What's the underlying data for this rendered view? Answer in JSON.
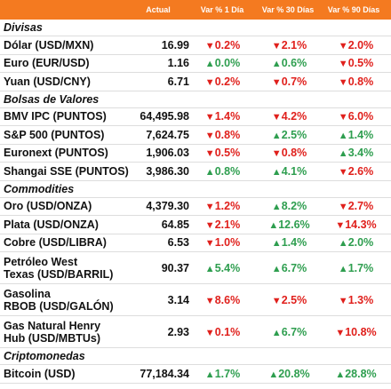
{
  "table": {
    "columns": [
      "Actual",
      "Var % 1 Día",
      "Var % 30 Días",
      "Var % 90 Días"
    ],
    "sections": [
      {
        "title": "Divisas",
        "rows": [
          {
            "name": "Dólar (USD/MXN)",
            "actual": "16.99",
            "changes": [
              {
                "dir": "▼",
                "value": "0.2%"
              },
              {
                "dir": "▼",
                "value": "2.1%"
              },
              {
                "dir": "▼",
                "value": "2.0%"
              }
            ]
          },
          {
            "name": "Euro (EUR/USD)",
            "actual": "1.16",
            "changes": [
              {
                "dir": "▲",
                "value": "0.0%"
              },
              {
                "dir": "▲",
                "value": "0.6%"
              },
              {
                "dir": "▼",
                "value": "0.5%"
              }
            ]
          },
          {
            "name": "Yuan (USD/CNY)",
            "actual": "6.71",
            "changes": [
              {
                "dir": "▼",
                "value": "0.2%"
              },
              {
                "dir": "▼",
                "value": "0.7%"
              },
              {
                "dir": "▼",
                "value": "0.8%"
              }
            ]
          }
        ]
      },
      {
        "title": "Bolsas de Valores",
        "rows": [
          {
            "name": "BMV IPC (PUNTOS)",
            "actual": "64,495.98",
            "changes": [
              {
                "dir": "▼",
                "value": "1.4%"
              },
              {
                "dir": "▼",
                "value": "4.2%"
              },
              {
                "dir": "▼",
                "value": "6.0%"
              }
            ]
          },
          {
            "name": "S&P 500 (PUNTOS)",
            "actual": "7,624.75",
            "changes": [
              {
                "dir": "▼",
                "value": "0.8%"
              },
              {
                "dir": "▲",
                "value": "2.5%"
              },
              {
                "dir": "▲",
                "value": "1.4%"
              }
            ]
          },
          {
            "name": "Euronext (PUNTOS)",
            "actual": "1,906.03",
            "changes": [
              {
                "dir": "▼",
                "value": "0.5%"
              },
              {
                "dir": "▼",
                "value": "0.8%"
              },
              {
                "dir": "▲",
                "value": "3.4%"
              }
            ]
          },
          {
            "name": "Shangai SSE (PUNTOS)",
            "actual": "3,986.30",
            "changes": [
              {
                "dir": "▲",
                "value": "0.8%"
              },
              {
                "dir": "▲",
                "value": "4.1%"
              },
              {
                "dir": "▼",
                "value": "2.6%"
              }
            ]
          }
        ]
      },
      {
        "title": "Commodities",
        "rows": [
          {
            "name": "Oro (USD/ONZA)",
            "actual": "4,379.30",
            "changes": [
              {
                "dir": "▼",
                "value": "1.2%"
              },
              {
                "dir": "▲",
                "value": "8.2%"
              },
              {
                "dir": "▼",
                "value": "2.7%"
              }
            ]
          },
          {
            "name": "Plata (USD/ONZA)",
            "actual": "64.85",
            "changes": [
              {
                "dir": "▼",
                "value": "2.1%"
              },
              {
                "dir": "▲",
                "value": "12.6%"
              },
              {
                "dir": "▼",
                "value": "14.3%"
              }
            ]
          },
          {
            "name": "Cobre (USD/LIBRA)",
            "actual": "6.53",
            "changes": [
              {
                "dir": "▼",
                "value": "1.0%"
              },
              {
                "dir": "▲",
                "value": "1.4%"
              },
              {
                "dir": "▲",
                "value": "2.0%"
              }
            ]
          },
          {
            "name": "Petróleo West\nTexas (USD/BARRIL)",
            "actual": "90.37",
            "changes": [
              {
                "dir": "▲",
                "value": "5.4%"
              },
              {
                "dir": "▲",
                "value": "6.7%"
              },
              {
                "dir": "▲",
                "value": "1.7%"
              }
            ]
          },
          {
            "name": "Gasolina\nRBOB (USD/GALÓN)",
            "actual": "3.14",
            "changes": [
              {
                "dir": "▼",
                "value": "8.6%"
              },
              {
                "dir": "▼",
                "value": "2.5%"
              },
              {
                "dir": "▼",
                "value": "1.3%"
              }
            ]
          },
          {
            "name": "Gas Natural Henry\nHub (USD/MBTUs)",
            "actual": "2.93",
            "changes": [
              {
                "dir": "▼",
                "value": "0.1%"
              },
              {
                "dir": "▲",
                "value": "6.7%"
              },
              {
                "dir": "▼",
                "value": "10.8%"
              }
            ]
          }
        ]
      },
      {
        "title": "Criptomonedas",
        "rows": [
          {
            "name": "Bitcoin (USD)",
            "actual": "77,184.34",
            "changes": [
              {
                "dir": "▲",
                "value": "1.7%"
              },
              {
                "dir": "▲",
                "value": "20.8%"
              },
              {
                "dir": "▲",
                "value": "28.8%"
              }
            ]
          }
        ]
      }
    ]
  }
}
